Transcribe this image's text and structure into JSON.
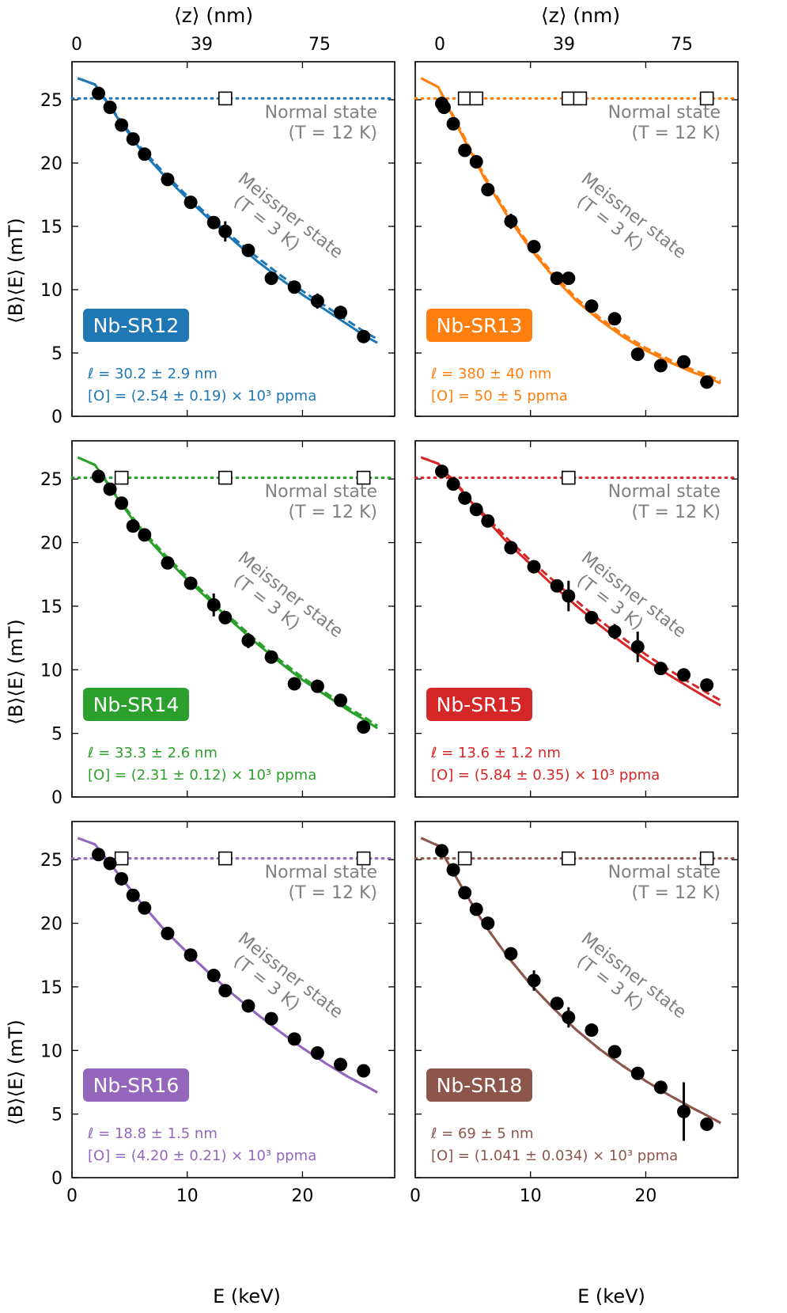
{
  "figure": {
    "top_axis_label": "⟨z⟩ (nm)",
    "top_ticks": [
      "0",
      "39",
      "75"
    ],
    "x_label": "E (keV)",
    "y_label": "⟨B⟩⟨E⟩ (mT)",
    "normal_state_line1": "Normal state",
    "normal_state_line2": "(T = 12 K)",
    "meissner_line1": "Meissner state",
    "meissner_line2": "(T = 3 K)"
  },
  "chart_data": [
    {
      "type": "scatter",
      "sample": "Nb-SR12",
      "color": "#1f77b4",
      "ell": "ℓ = 30.2 ± 2.9 nm",
      "oxygen": "[O] = (2.54 ± 0.19) × 10³ ppma",
      "xlim": [
        0,
        28
      ],
      "ylim": [
        0,
        28
      ],
      "x_ticks": [
        0,
        10,
        20
      ],
      "y_ticks": [
        0,
        5,
        10,
        15,
        20,
        25
      ],
      "normal_level": 25.1,
      "meissner": {
        "x": [
          2.3,
          3.3,
          4.3,
          5.3,
          6.3,
          8.3,
          10.3,
          12.3,
          13.3,
          15.3,
          17.3,
          19.3,
          21.3,
          23.3,
          25.3
        ],
        "y": [
          25.5,
          24.4,
          23.0,
          21.9,
          20.7,
          18.7,
          16.9,
          15.3,
          14.6,
          13.1,
          10.9,
          10.2,
          9.1,
          8.2,
          6.3
        ],
        "err": [
          0,
          0,
          0,
          0,
          0,
          0,
          0,
          0,
          0.8,
          0,
          0,
          0,
          0.6,
          0,
          0
        ]
      },
      "normal": {
        "x": [
          13.3
        ],
        "y": [
          25.1
        ]
      },
      "fit": {
        "x": [
          0.5,
          2,
          4,
          6,
          8,
          10,
          12,
          14,
          16,
          18,
          20,
          22,
          24,
          25.5,
          26.5
        ],
        "y": [
          26.7,
          26.2,
          23.5,
          21.0,
          19.0,
          17.2,
          15.5,
          13.9,
          12.3,
          10.9,
          9.6,
          8.4,
          7.2,
          6.3,
          5.8
        ]
      },
      "fit2": {
        "x": [
          0.5,
          2,
          4,
          6,
          8,
          10,
          12,
          14,
          16,
          18,
          20,
          22,
          24,
          25.5,
          26.5
        ],
        "y": [
          26.7,
          26.2,
          23.6,
          21.2,
          19.2,
          17.4,
          15.7,
          14.1,
          12.6,
          11.2,
          9.9,
          8.7,
          7.5,
          6.6,
          6.1
        ]
      }
    },
    {
      "type": "scatter",
      "sample": "Nb-SR13",
      "color": "#ff7f0e",
      "ell": "ℓ = 380 ± 40 nm",
      "oxygen": "[O] = 50 ± 5 ppma",
      "xlim": [
        0,
        28
      ],
      "ylim": [
        0,
        28
      ],
      "x_ticks": [
        0,
        10,
        20
      ],
      "y_ticks": [
        0,
        5,
        10,
        15,
        20,
        25
      ],
      "normal_level": 25.1,
      "meissner": {
        "x": [
          2.3,
          2.5,
          3.3,
          4.3,
          5.3,
          6.3,
          8.3,
          10.3,
          12.3,
          13.3,
          15.3,
          17.3,
          19.3,
          21.3,
          23.3,
          25.3
        ],
        "y": [
          24.7,
          24.4,
          23.1,
          21.0,
          20.1,
          17.9,
          15.4,
          13.4,
          10.9,
          10.9,
          8.7,
          7.7,
          4.9,
          4.0,
          4.3,
          2.7
        ],
        "err": [
          0,
          0,
          0,
          0,
          0,
          0,
          0.6,
          0,
          0,
          0,
          0,
          0,
          0,
          0,
          0,
          0
        ]
      },
      "normal": {
        "x": [
          4.3,
          5.3,
          13.3,
          14.3,
          25.3
        ],
        "y": [
          25.1,
          25.1,
          25.1,
          25.1,
          25.1
        ]
      },
      "fit": {
        "x": [
          0.5,
          2,
          4,
          6,
          8,
          10,
          12,
          14,
          16,
          18,
          20,
          22,
          24,
          25.5,
          26.5
        ],
        "y": [
          26.7,
          26.0,
          22.3,
          18.8,
          15.8,
          13.2,
          11.0,
          9.1,
          7.6,
          6.3,
          5.2,
          4.3,
          3.5,
          3.0,
          2.6
        ]
      },
      "fit2": {
        "x": [
          0.5,
          2,
          4,
          6,
          8,
          10,
          12,
          14,
          16,
          18,
          20,
          22,
          24,
          25.5,
          26.5
        ],
        "y": [
          26.7,
          26.0,
          22.5,
          19.0,
          16.0,
          13.4,
          11.2,
          9.3,
          7.8,
          6.5,
          5.4,
          4.5,
          3.7,
          3.2,
          2.8
        ]
      }
    },
    {
      "type": "scatter",
      "sample": "Nb-SR14",
      "color": "#2ca02c",
      "ell": "ℓ = 33.3 ± 2.6 nm",
      "oxygen": "[O] = (2.31 ± 0.12) × 10³ ppma",
      "xlim": [
        0,
        28
      ],
      "ylim": [
        0,
        28
      ],
      "x_ticks": [
        0,
        10,
        20
      ],
      "y_ticks": [
        0,
        5,
        10,
        15,
        20,
        25
      ],
      "normal_level": 25.1,
      "meissner": {
        "x": [
          2.3,
          3.3,
          4.3,
          5.3,
          6.3,
          8.3,
          10.3,
          12.3,
          13.3,
          15.3,
          17.3,
          19.3,
          21.3,
          23.3,
          25.3
        ],
        "y": [
          25.2,
          24.2,
          23.1,
          21.3,
          20.6,
          18.4,
          16.8,
          15.1,
          14.1,
          12.3,
          11.0,
          8.9,
          8.7,
          7.6,
          5.5
        ],
        "err": [
          0,
          0,
          0,
          0,
          0,
          0,
          0,
          0.9,
          0,
          0.6,
          0,
          0,
          0,
          0,
          0
        ]
      },
      "normal": {
        "x": [
          4.3,
          13.3,
          25.3
        ],
        "y": [
          25.1,
          25.1,
          25.1
        ]
      },
      "fit": {
        "x": [
          0.5,
          2,
          4,
          6,
          8,
          10,
          12,
          14,
          16,
          18,
          20,
          22,
          24,
          25.5,
          26.5
        ],
        "y": [
          26.7,
          26.1,
          23.4,
          20.9,
          18.9,
          17.1,
          15.4,
          13.7,
          12.1,
          10.6,
          9.2,
          8.0,
          6.8,
          6.0,
          5.4
        ]
      },
      "fit2": {
        "x": [
          0.5,
          2,
          4,
          6,
          8,
          10,
          12,
          14,
          16,
          18,
          20,
          22,
          24,
          25.5,
          26.5
        ],
        "y": [
          26.7,
          26.1,
          23.5,
          21.1,
          19.1,
          17.3,
          15.6,
          13.9,
          12.3,
          10.8,
          9.4,
          8.2,
          7.0,
          6.2,
          5.6
        ]
      }
    },
    {
      "type": "scatter",
      "sample": "Nb-SR15",
      "color": "#d62728",
      "ell": "ℓ = 13.6 ± 1.2 nm",
      "oxygen": "[O] = (5.84 ± 0.35) × 10³ ppma",
      "xlim": [
        0,
        28
      ],
      "ylim": [
        0,
        28
      ],
      "x_ticks": [
        0,
        10,
        20
      ],
      "y_ticks": [
        0,
        5,
        10,
        15,
        20,
        25
      ],
      "normal_level": 25.1,
      "meissner": {
        "x": [
          2.3,
          3.3,
          4.3,
          5.3,
          6.3,
          8.3,
          10.3,
          12.3,
          13.3,
          15.3,
          17.3,
          19.3,
          21.3,
          23.3,
          25.3
        ],
        "y": [
          25.6,
          24.6,
          23.5,
          22.6,
          21.7,
          19.6,
          18.1,
          16.6,
          15.8,
          14.1,
          13.0,
          11.8,
          10.1,
          9.6,
          8.8
        ],
        "err": [
          0,
          0,
          0,
          0,
          0,
          0,
          0,
          0,
          1.2,
          0,
          0.6,
          1.2,
          0.5,
          0,
          0.5
        ]
      },
      "normal": {
        "x": [
          13.3
        ],
        "y": [
          25.1
        ]
      },
      "fit": {
        "x": [
          0.5,
          2,
          4,
          6,
          8,
          10,
          12,
          14,
          16,
          18,
          20,
          22,
          24,
          25.5,
          26.5
        ],
        "y": [
          26.7,
          26.2,
          24.1,
          22.0,
          20.0,
          18.3,
          16.6,
          15.0,
          13.5,
          12.1,
          10.8,
          9.6,
          8.5,
          7.7,
          7.2
        ]
      },
      "fit2": {
        "x": [
          0.5,
          2,
          4,
          6,
          8,
          10,
          12,
          14,
          16,
          18,
          20,
          22,
          24,
          25.5,
          26.5
        ],
        "y": [
          26.7,
          26.2,
          24.2,
          22.2,
          20.3,
          18.6,
          17.0,
          15.4,
          13.9,
          12.5,
          11.2,
          10.0,
          8.9,
          8.1,
          7.6
        ]
      }
    },
    {
      "type": "scatter",
      "sample": "Nb-SR16",
      "color": "#9467bd",
      "ell": "ℓ = 18.8 ± 1.5 nm",
      "oxygen": "[O] = (4.20 ± 0.21) × 10³ ppma",
      "xlim": [
        0,
        28
      ],
      "ylim": [
        0,
        28
      ],
      "x_ticks": [
        0,
        10,
        20
      ],
      "y_ticks": [
        0,
        5,
        10,
        15,
        20,
        25
      ],
      "normal_level": 25.1,
      "meissner": {
        "x": [
          2.3,
          3.3,
          4.3,
          5.3,
          6.3,
          8.3,
          10.3,
          12.3,
          13.3,
          15.3,
          17.3,
          19.3,
          21.3,
          23.3,
          25.3
        ],
        "y": [
          25.4,
          24.7,
          23.5,
          22.2,
          21.2,
          19.2,
          17.5,
          15.9,
          14.7,
          13.5,
          12.5,
          10.9,
          9.8,
          8.9,
          8.4
        ],
        "err": [
          0,
          0,
          0,
          0,
          0,
          0,
          0,
          0,
          0,
          0,
          0,
          0,
          0,
          0,
          0
        ]
      },
      "normal": {
        "x": [
          4.3,
          13.3,
          25.3
        ],
        "y": [
          25.1,
          25.1,
          25.1
        ]
      },
      "fit": {
        "x": [
          0.5,
          2,
          4,
          6,
          8,
          10,
          12,
          14,
          16,
          18,
          20,
          22,
          24,
          25.5,
          26.5
        ],
        "y": [
          26.7,
          26.2,
          23.9,
          21.6,
          19.5,
          17.7,
          16.0,
          14.4,
          12.9,
          11.5,
          10.2,
          9.0,
          7.9,
          7.2,
          6.7
        ]
      },
      "fit2": {
        "x": [
          0.5,
          2,
          4,
          6,
          8,
          10,
          12,
          14,
          16,
          18,
          20,
          22,
          24,
          25.5,
          26.5
        ],
        "y": [
          26.7,
          26.2,
          23.9,
          21.6,
          19.5,
          17.7,
          16.0,
          14.4,
          12.9,
          11.5,
          10.2,
          9.0,
          7.9,
          7.2,
          6.7
        ]
      }
    },
    {
      "type": "scatter",
      "sample": "Nb-SR18",
      "color": "#8c564b",
      "ell": "ℓ = 69 ± 5 nm",
      "oxygen": "[O] = (1.041 ± 0.034) × 10³ ppma",
      "xlim": [
        0,
        28
      ],
      "ylim": [
        0,
        28
      ],
      "x_ticks": [
        0,
        10,
        20
      ],
      "y_ticks": [
        0,
        5,
        10,
        15,
        20,
        25
      ],
      "normal_level": 25.1,
      "meissner": {
        "x": [
          2.3,
          3.3,
          4.3,
          5.3,
          6.3,
          8.3,
          10.3,
          12.3,
          13.3,
          15.3,
          17.3,
          19.3,
          21.3,
          23.3,
          25.3
        ],
        "y": [
          25.7,
          24.2,
          22.4,
          21.1,
          20.0,
          17.6,
          15.5,
          13.7,
          12.6,
          11.6,
          9.9,
          8.2,
          7.1,
          5.2,
          4.2
        ],
        "err": [
          0,
          0,
          0,
          0,
          0,
          0,
          0.8,
          0,
          0.8,
          0,
          0,
          0,
          0,
          2.3,
          0.5
        ]
      },
      "normal": {
        "x": [
          4.3,
          13.3,
          25.3
        ],
        "y": [
          25.1,
          25.1,
          25.1
        ]
      },
      "fit": {
        "x": [
          0.5,
          2,
          4,
          6,
          8,
          10,
          12,
          14,
          16,
          18,
          20,
          22,
          24,
          25.5,
          26.5
        ],
        "y": [
          26.7,
          26.1,
          22.9,
          19.9,
          17.4,
          15.2,
          13.3,
          11.6,
          10.1,
          8.8,
          7.6,
          6.5,
          5.5,
          4.8,
          4.3
        ]
      },
      "fit2": {
        "x": [
          0.5,
          2,
          4,
          6,
          8,
          10,
          12,
          14,
          16,
          18,
          20,
          22,
          24,
          25.5,
          26.5
        ],
        "y": [
          26.7,
          26.1,
          22.9,
          19.9,
          17.4,
          15.2,
          13.3,
          11.6,
          10.1,
          8.8,
          7.6,
          6.5,
          5.5,
          4.8,
          4.3
        ]
      }
    }
  ]
}
